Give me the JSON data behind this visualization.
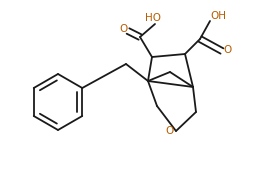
{
  "bg_color": "#ffffff",
  "bond_color": "#1a1a1a",
  "o_color": "#b85c00",
  "ho_color": "#b85c00",
  "lw": 1.3,
  "figsize": [
    2.58,
    1.69
  ],
  "dpi": 100,
  "xlim": [
    0,
    258
  ],
  "ylim": [
    0,
    169
  ]
}
